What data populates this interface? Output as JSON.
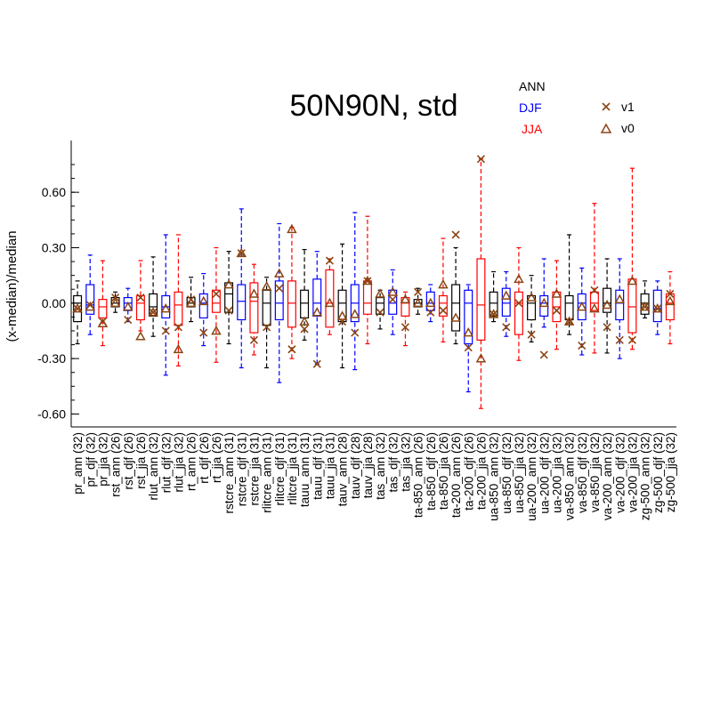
{
  "chart_data": {
    "type": "box",
    "title": "50N90N, std",
    "ylabel": "(x-median)/median",
    "xlabel": "",
    "ylim": [
      -0.67,
      0.88
    ],
    "yticks": [
      -0.6,
      -0.3,
      0.0,
      0.3,
      0.6
    ],
    "ytick_labels": [
      "-0.60",
      "-0.30",
      "0.00",
      "0.30",
      "0.60"
    ],
    "grid": false,
    "legend": {
      "season_labels": [
        "ANN",
        "DJF",
        "JJA"
      ],
      "season_colors": [
        "#000000",
        "#0000ff",
        "#ff0000"
      ],
      "marker_labels": [
        "v1",
        "v0"
      ],
      "marker_symbols": [
        "x",
        "triangle"
      ],
      "marker_color": "#8b4513",
      "position": "top-right"
    },
    "categories": [
      {
        "label": "pr_ann (32)",
        "season": "ANN",
        "box": [
          -0.22,
          -0.1,
          0.0,
          0.04,
          0.12
        ],
        "v1": -0.03,
        "v0": -0.03
      },
      {
        "label": "pr_djf (32)",
        "season": "DJF",
        "box": [
          -0.17,
          -0.06,
          -0.01,
          0.1,
          0.26
        ],
        "v1": -0.01,
        "v0": -0.02
      },
      {
        "label": "pr_jja (32)",
        "season": "JJA",
        "box": [
          -0.23,
          -0.08,
          -0.02,
          0.02,
          0.23
        ],
        "v1": -0.1,
        "v0": -0.11
      },
      {
        "label": "rst_ann (26)",
        "season": "ANN",
        "box": [
          -0.05,
          -0.02,
          0.0,
          0.03,
          0.06
        ],
        "v1": 0.03,
        "v0": 0.0
      },
      {
        "label": "rst_djf (26)",
        "season": "DJF",
        "box": [
          -0.1,
          -0.04,
          0.0,
          0.03,
          0.08
        ],
        "v1": -0.09,
        "v0": -0.02
      },
      {
        "label": "rst_jja (26)",
        "season": "JJA",
        "box": [
          -0.15,
          -0.09,
          0.0,
          0.04,
          0.23
        ],
        "v1": 0.03,
        "v0": -0.18
      },
      {
        "label": "rlut_ann (32)",
        "season": "ANN",
        "box": [
          -0.18,
          -0.07,
          -0.02,
          0.05,
          0.25
        ],
        "v1": -0.05,
        "v0": -0.05
      },
      {
        "label": "rlut_djf (32)",
        "season": "DJF",
        "box": [
          -0.39,
          -0.08,
          -0.02,
          0.04,
          0.37
        ],
        "v1": -0.15,
        "v0": -0.03
      },
      {
        "label": "rlut_jja (32)",
        "season": "JJA",
        "box": [
          -0.34,
          -0.12,
          -0.01,
          0.06,
          0.37
        ],
        "v1": -0.13,
        "v0": -0.25
      },
      {
        "label": "rt_ann (26)",
        "season": "ANN",
        "box": [
          -0.1,
          -0.02,
          0.0,
          0.03,
          0.14
        ],
        "v1": 0.02,
        "v0": 0.0
      },
      {
        "label": "rt_djf (26)",
        "season": "DJF",
        "box": [
          -0.23,
          -0.08,
          0.0,
          0.05,
          0.16
        ],
        "v1": -0.16,
        "v0": 0.01
      },
      {
        "label": "rt_jja (26)",
        "season": "JJA",
        "box": [
          -0.32,
          -0.05,
          0.0,
          0.07,
          0.3
        ],
        "v1": 0.05,
        "v0": -0.15
      },
      {
        "label": "rstcre_ann (31)",
        "season": "ANN",
        "box": [
          -0.22,
          -0.05,
          0.05,
          0.11,
          0.28
        ],
        "v1": -0.04,
        "v0": 0.1
      },
      {
        "label": "rstcre_djf (31)",
        "season": "DJF",
        "box": [
          -0.35,
          -0.09,
          0.01,
          0.1,
          0.51
        ],
        "v1": 0.27,
        "v0": 0.27
      },
      {
        "label": "rstcre_jja (31)",
        "season": "JJA",
        "box": [
          -0.28,
          -0.16,
          0.01,
          0.11,
          0.21
        ],
        "v1": -0.2,
        "v0": 0.05
      },
      {
        "label": "rlitcre_ann (31)",
        "season": "ANN",
        "box": [
          -0.35,
          -0.12,
          0.0,
          0.07,
          0.14
        ],
        "v1": -0.13,
        "v0": 0.09
      },
      {
        "label": "rlitcre_djf (31)",
        "season": "DJF",
        "box": [
          -0.43,
          -0.09,
          0.0,
          0.12,
          0.43
        ],
        "v1": 0.08,
        "v0": 0.16
      },
      {
        "label": "rlitcre_jja (31)",
        "season": "JJA",
        "box": [
          -0.3,
          -0.13,
          0.0,
          0.12,
          0.41
        ],
        "v1": -0.25,
        "v0": 0.4
      },
      {
        "label": "tauu_ann (31)",
        "season": "ANN",
        "box": [
          -0.2,
          -0.08,
          0.0,
          0.07,
          0.29
        ],
        "v1": -0.14,
        "v0": -0.1
      },
      {
        "label": "tauu_djf (31)",
        "season": "DJF",
        "box": [
          -0.33,
          -0.07,
          0.0,
          0.13,
          0.28
        ],
        "v1": -0.33,
        "v0": -0.05
      },
      {
        "label": "tauu_jja (31)",
        "season": "JJA",
        "box": [
          -0.17,
          -0.13,
          0.0,
          0.18,
          0.24
        ],
        "v1": 0.23,
        "v0": 0.0
      },
      {
        "label": "tauv_ann (28)",
        "season": "ANN",
        "box": [
          -0.35,
          -0.1,
          0.0,
          0.07,
          0.32
        ],
        "v1": -0.1,
        "v0": -0.07
      },
      {
        "label": "tauv_djf (28)",
        "season": "DJF",
        "box": [
          -0.36,
          -0.1,
          0.0,
          0.1,
          0.49
        ],
        "v1": -0.16,
        "v0": -0.06
      },
      {
        "label": "tauv_jja (28)",
        "season": "JJA",
        "box": [
          -0.22,
          -0.06,
          0.0,
          0.12,
          0.47
        ],
        "v1": 0.12,
        "v0": 0.12
      },
      {
        "label": "tas_ann (32)",
        "season": "ANN",
        "box": [
          -0.14,
          -0.06,
          0.0,
          0.03,
          0.07
        ],
        "v1": -0.05,
        "v0": 0.05
      },
      {
        "label": "tas_djf (32)",
        "season": "DJF",
        "box": [
          -0.17,
          -0.06,
          0.0,
          0.07,
          0.18
        ],
        "v1": 0.02,
        "v0": 0.06
      },
      {
        "label": "tas_jja (32)",
        "season": "JJA",
        "box": [
          -0.23,
          -0.07,
          0.0,
          0.03,
          0.06
        ],
        "v1": -0.13,
        "v0": 0.02
      },
      {
        "label": "ta-850_ann (26)",
        "season": "ANN",
        "box": [
          -0.06,
          -0.02,
          0.0,
          0.02,
          0.08
        ],
        "v1": 0.06,
        "v0": 0.0
      },
      {
        "label": "ta-850_djf (26)",
        "season": "DJF",
        "box": [
          -0.1,
          -0.04,
          0.0,
          0.06,
          0.1
        ],
        "v1": -0.05,
        "v0": 0.0
      },
      {
        "label": "ta-850_jja (26)",
        "season": "JJA",
        "box": [
          -0.21,
          -0.07,
          0.0,
          0.04,
          0.35
        ],
        "v1": -0.04,
        "v0": 0.1
      },
      {
        "label": "ta-200_ann (26)",
        "season": "ANN",
        "box": [
          -0.22,
          -0.15,
          0.0,
          0.1,
          0.3
        ],
        "v1": 0.37,
        "v0": -0.08
      },
      {
        "label": "ta-200_djf (26)",
        "season": "DJF",
        "box": [
          -0.48,
          -0.22,
          0.0,
          0.07,
          0.1
        ],
        "v1": -0.24,
        "v0": -0.16
      },
      {
        "label": "ta-200_jja (26)",
        "season": "JJA",
        "box": [
          -0.57,
          -0.2,
          -0.01,
          0.24,
          0.78
        ],
        "v1": 0.78,
        "v0": -0.3
      },
      {
        "label": "ua-850_ann (32)",
        "season": "ANN",
        "box": [
          -0.1,
          -0.07,
          0.0,
          0.06,
          0.17
        ],
        "v1": -0.06,
        "v0": -0.06
      },
      {
        "label": "ua-850_djf (32)",
        "season": "DJF",
        "box": [
          -0.18,
          -0.07,
          0.0,
          0.08,
          0.17
        ],
        "v1": -0.13,
        "v0": 0.04
      },
      {
        "label": "ua-850_jja (32)",
        "season": "JJA",
        "box": [
          -0.31,
          -0.17,
          0.0,
          0.06,
          0.3
        ],
        "v1": 0.0,
        "v0": 0.13
      },
      {
        "label": "ua-200_ann (32)",
        "season": "ANN",
        "box": [
          -0.21,
          -0.09,
          0.0,
          0.04,
          0.15
        ],
        "v1": -0.17,
        "v0": 0.03
      },
      {
        "label": "ua-200_djf (32)",
        "season": "DJF",
        "box": [
          -0.13,
          -0.07,
          0.0,
          0.04,
          0.24
        ],
        "v1": -0.28,
        "v0": 0.0
      },
      {
        "label": "ua-200_jja (32)",
        "season": "JJA",
        "box": [
          -0.25,
          -0.1,
          -0.02,
          0.06,
          0.23
        ],
        "v1": -0.04,
        "v0": 0.05
      },
      {
        "label": "va-850_ann (32)",
        "season": "ANN",
        "box": [
          -0.17,
          -0.09,
          0.0,
          0.04,
          0.37
        ],
        "v1": -0.1,
        "v0": -0.1
      },
      {
        "label": "va-850_djf (32)",
        "season": "DJF",
        "box": [
          -0.28,
          -0.09,
          0.0,
          0.05,
          0.19
        ],
        "v1": -0.23,
        "v0": -0.02
      },
      {
        "label": "va-850_jja (32)",
        "season": "JJA",
        "box": [
          -0.27,
          -0.04,
          0.0,
          0.06,
          0.54
        ],
        "v1": 0.07,
        "v0": -0.03
      },
      {
        "label": "va-200_ann (32)",
        "season": "ANN",
        "box": [
          -0.27,
          -0.05,
          0.0,
          0.08,
          0.24
        ],
        "v1": -0.13,
        "v0": -0.01
      },
      {
        "label": "va-200_djf (32)",
        "season": "DJF",
        "box": [
          -0.3,
          -0.09,
          0.0,
          0.07,
          0.24
        ],
        "v1": -0.2,
        "v0": 0.02
      },
      {
        "label": "va-200_jja (32)",
        "season": "JJA",
        "box": [
          -0.25,
          -0.16,
          -0.02,
          0.13,
          0.73
        ],
        "v1": -0.2,
        "v0": 0.12
      },
      {
        "label": "zg-500_ann (32)",
        "season": "ANN",
        "box": [
          -0.08,
          -0.06,
          0.0,
          0.05,
          0.12
        ],
        "v1": -0.02,
        "v0": -0.02
      },
      {
        "label": "zg-500_djf (32)",
        "season": "DJF",
        "box": [
          -0.17,
          -0.1,
          -0.03,
          0.07,
          0.12
        ],
        "v1": -0.03,
        "v0": -0.03
      },
      {
        "label": "zg-500_jja (32)",
        "season": "JJA",
        "box": [
          -0.22,
          -0.09,
          0.0,
          0.05,
          0.17
        ],
        "v1": 0.05,
        "v0": 0.01
      }
    ]
  }
}
